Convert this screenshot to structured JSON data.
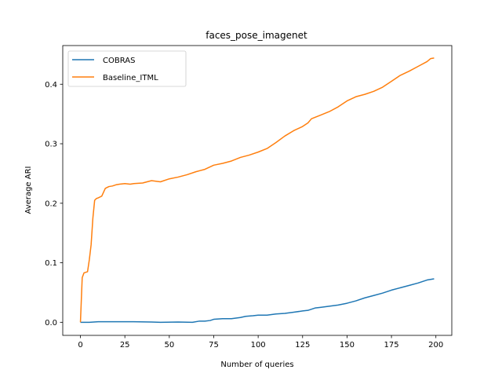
{
  "chart_data": {
    "type": "line",
    "title": "faces_pose_imagenet",
    "xlabel": "Number of queries",
    "ylabel": "Average ARI",
    "xlim": [
      -9.95,
      208.95
    ],
    "ylim": [
      -0.022,
      0.465
    ],
    "xticks": [
      0,
      25,
      50,
      75,
      100,
      125,
      150,
      175,
      200
    ],
    "yticks": [
      0.0,
      0.1,
      0.2,
      0.3,
      0.4
    ],
    "grid": false,
    "legend_position": "upper-left",
    "series": [
      {
        "name": "COBRAS",
        "color": "#1f77b4",
        "points": [
          [
            0,
            0.0
          ],
          [
            5,
            0.0
          ],
          [
            10,
            0.001
          ],
          [
            20,
            0.001
          ],
          [
            30,
            0.001
          ],
          [
            40,
            0.0005
          ],
          [
            45,
            0.0
          ],
          [
            55,
            0.0005
          ],
          [
            63,
            0.0
          ],
          [
            67,
            0.002
          ],
          [
            70,
            0.002
          ],
          [
            73,
            0.003
          ],
          [
            75,
            0.005
          ],
          [
            80,
            0.006
          ],
          [
            85,
            0.006
          ],
          [
            90,
            0.008
          ],
          [
            93,
            0.01
          ],
          [
            97,
            0.011
          ],
          [
            100,
            0.012
          ],
          [
            105,
            0.012
          ],
          [
            110,
            0.014
          ],
          [
            115,
            0.015
          ],
          [
            120,
            0.017
          ],
          [
            125,
            0.019
          ],
          [
            128,
            0.02
          ],
          [
            132,
            0.024
          ],
          [
            135,
            0.025
          ],
          [
            140,
            0.027
          ],
          [
            145,
            0.029
          ],
          [
            150,
            0.032
          ],
          [
            155,
            0.036
          ],
          [
            160,
            0.041
          ],
          [
            165,
            0.045
          ],
          [
            170,
            0.049
          ],
          [
            175,
            0.054
          ],
          [
            180,
            0.058
          ],
          [
            185,
            0.062
          ],
          [
            190,
            0.066
          ],
          [
            195,
            0.071
          ],
          [
            199,
            0.073
          ]
        ]
      },
      {
        "name": "Baseline_ITML",
        "color": "#ff7f0e",
        "points": [
          [
            0,
            0.0
          ],
          [
            1,
            0.075
          ],
          [
            2,
            0.083
          ],
          [
            3,
            0.084
          ],
          [
            4,
            0.085
          ],
          [
            5,
            0.105
          ],
          [
            6,
            0.13
          ],
          [
            7,
            0.175
          ],
          [
            8,
            0.205
          ],
          [
            9,
            0.208
          ],
          [
            10,
            0.209
          ],
          [
            12,
            0.212
          ],
          [
            14,
            0.225
          ],
          [
            16,
            0.228
          ],
          [
            18,
            0.229
          ],
          [
            20,
            0.231
          ],
          [
            22,
            0.232
          ],
          [
            25,
            0.233
          ],
          [
            28,
            0.232
          ],
          [
            30,
            0.233
          ],
          [
            35,
            0.234
          ],
          [
            40,
            0.238
          ],
          [
            45,
            0.236
          ],
          [
            50,
            0.241
          ],
          [
            55,
            0.244
          ],
          [
            60,
            0.248
          ],
          [
            65,
            0.253
          ],
          [
            70,
            0.257
          ],
          [
            75,
            0.264
          ],
          [
            80,
            0.267
          ],
          [
            85,
            0.271
          ],
          [
            90,
            0.277
          ],
          [
            95,
            0.281
          ],
          [
            100,
            0.286
          ],
          [
            105,
            0.292
          ],
          [
            110,
            0.302
          ],
          [
            115,
            0.313
          ],
          [
            120,
            0.322
          ],
          [
            125,
            0.329
          ],
          [
            128,
            0.335
          ],
          [
            130,
            0.342
          ],
          [
            135,
            0.348
          ],
          [
            140,
            0.354
          ],
          [
            145,
            0.362
          ],
          [
            150,
            0.372
          ],
          [
            155,
            0.379
          ],
          [
            160,
            0.383
          ],
          [
            165,
            0.388
          ],
          [
            170,
            0.395
          ],
          [
            175,
            0.405
          ],
          [
            180,
            0.415
          ],
          [
            185,
            0.422
          ],
          [
            190,
            0.43
          ],
          [
            195,
            0.438
          ],
          [
            197,
            0.443
          ],
          [
            199,
            0.444
          ]
        ]
      }
    ]
  }
}
